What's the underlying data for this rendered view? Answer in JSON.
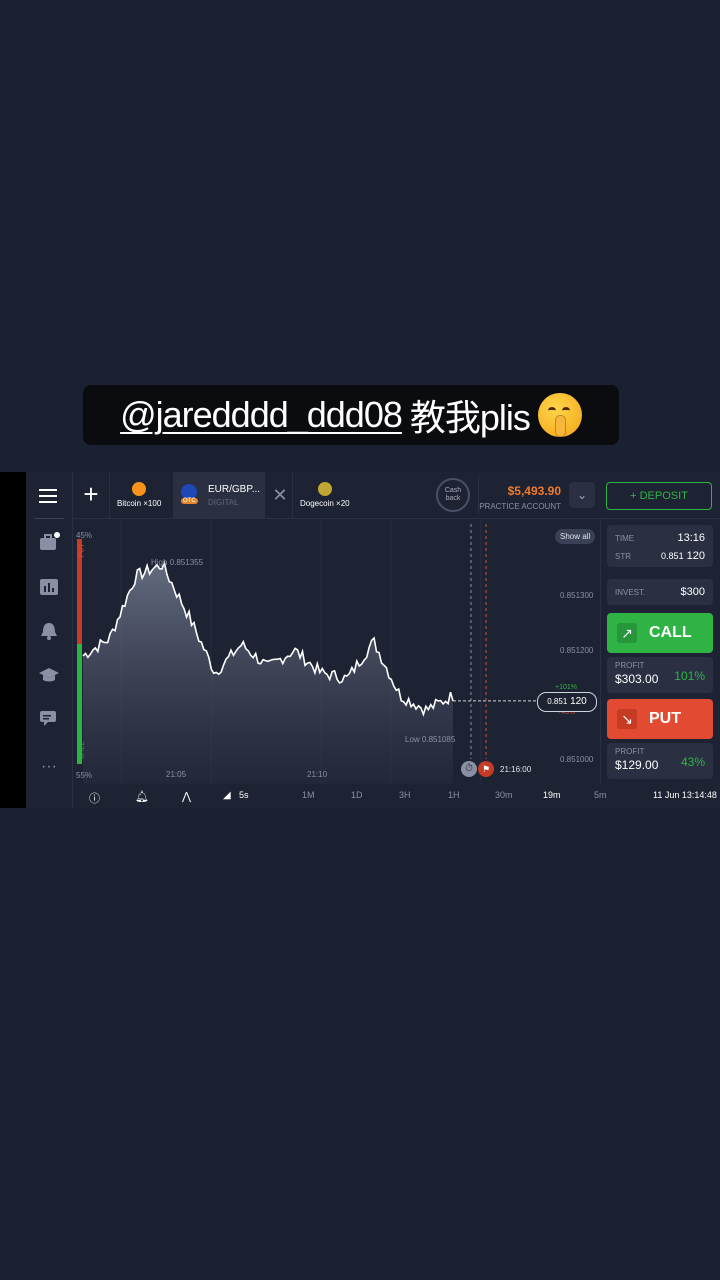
{
  "caption": {
    "handle": "@jaredddd_ddd08",
    "text": "教我plis",
    "emoji": "shushing-face-emoji"
  },
  "topbar": {
    "tabs": [
      {
        "name": "Bitcoin",
        "mult": "×100"
      },
      {
        "name": "EUR/GBP...",
        "sub": "DIGITAL",
        "badge": "OTC"
      },
      {
        "name": "Dogecoin",
        "mult": "×20"
      }
    ],
    "cashback": "Cash back",
    "balance": "$5,493.90",
    "account": "PRACTICE ACCOUNT",
    "deposit_label": "+ DEPOSIT",
    "accent": "#2fb344",
    "balance_color": "#f07b2b"
  },
  "chart": {
    "show_all": "Show all",
    "high_label": "High 0.851355",
    "low_label": "Low 0.851085",
    "put_pct": "45%",
    "call_pct": "55%",
    "put_label": "PUT",
    "call_label": "CALL",
    "price_main": "0.851",
    "price_tail": "120",
    "up_pct": "+101%",
    "down_pct": "+43%",
    "expiry_time": "21:16:00",
    "y_ticks": [
      "0.851300",
      "0.851200",
      "0.851000"
    ],
    "x_ticks": [
      "21:05",
      "21:10"
    ]
  },
  "chart_data": {
    "type": "area",
    "title": "",
    "xlabel": "",
    "ylabel": "",
    "x": [
      "21:02",
      "21:03",
      "21:04",
      "21:05",
      "21:06",
      "21:07",
      "21:08",
      "21:09",
      "21:10",
      "21:11",
      "21:12",
      "21:13",
      "21:14",
      "21:15",
      "21:15:30"
    ],
    "series": [
      {
        "values": [
          0.85119,
          0.85122,
          0.85133,
          0.85135,
          0.85126,
          0.85116,
          0.85121,
          0.85117,
          0.8512,
          0.85116,
          0.85115,
          0.851215,
          0.85112,
          0.851095,
          0.85112
        ]
      }
    ],
    "ylim": [
      0.851,
      0.85136
    ],
    "high": 0.851355,
    "low": 0.851085
  },
  "bottombar": {
    "items": [
      "5s",
      "1M",
      "1D",
      "3H",
      "1H",
      "30m",
      "19m",
      "5m"
    ],
    "datetime": "11 Jun 13:14:48"
  },
  "panel": {
    "time_label": "TIME",
    "time_value": "13:16",
    "str_label": "STR",
    "str_value_main": "0.851",
    "str_value_tail": "120",
    "invest_label": "INVEST.",
    "invest_value": "$300",
    "call_label": "CALL",
    "put_label": "PUT",
    "profit_label": "PROFIT",
    "call_profit": "$303.00",
    "call_pct": "101%",
    "put_profit": "$129.00",
    "put_pct": "43%"
  }
}
